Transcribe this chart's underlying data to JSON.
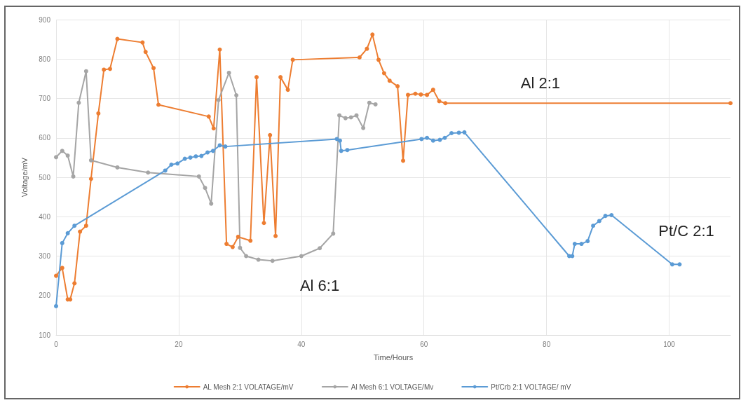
{
  "chart_data": {
    "type": "line",
    "xlabel": "Time/Hours",
    "ylabel": "Voltage/mV",
    "xlim": [
      0,
      110
    ],
    "xticks": [
      0,
      20,
      40,
      60,
      80,
      100
    ],
    "ylim": [
      100,
      900
    ],
    "yticks": [
      100,
      200,
      300,
      400,
      500,
      600,
      700,
      800,
      900
    ],
    "grid": true,
    "legend": "bottom",
    "marker": "circle",
    "line_style": "solid",
    "series": [
      {
        "name": "AL Mesh 2:1 VOLATAGE/mV",
        "color": "#ed7d31",
        "x": [
          0,
          1,
          1.9,
          2.3,
          3,
          3.9,
          4.9,
          5.7,
          6.9,
          7.8,
          8.8,
          10,
          14.1,
          14.6,
          15.9,
          16.7,
          24.9,
          25.7,
          26.7,
          27.8,
          28.8,
          29.7,
          31.7,
          32.7,
          33.9,
          34.9,
          35.8,
          36.6,
          37.8,
          38.6,
          49.5,
          50.7,
          51.6,
          52.6,
          53.5,
          54.4,
          55.7,
          56.6,
          57.4,
          58.6,
          59.5,
          60.5,
          61.5,
          62.5,
          63.5,
          110
        ],
        "values": [
          250,
          270,
          190,
          190,
          231,
          362,
          377,
          496,
          662,
          773,
          775,
          851,
          842,
          818,
          777,
          684,
          654,
          624,
          824,
          331,
          323,
          349,
          339,
          754,
          384,
          607,
          351,
          754,
          722,
          798,
          804,
          826,
          862,
          798,
          764,
          745,
          731,
          542,
          709,
          712,
          710,
          709,
          722,
          693,
          688,
          688
        ]
      },
      {
        "name": "Al Mesh 6:1 VOLTAGE/Mv",
        "color": "#a5a5a5",
        "x": [
          0,
          1,
          1.9,
          2.8,
          3.7,
          4.9,
          5.7,
          10,
          15,
          23.3,
          24.3,
          25.3,
          26.5,
          28.2,
          29.4,
          30,
          31,
          33,
          35.3,
          40,
          43,
          45.2,
          46.2,
          47.2,
          48.1,
          49,
          50.1,
          51.1,
          52.1
        ],
        "values": [
          551,
          567,
          555,
          502,
          689,
          769,
          543,
          525,
          512,
          502,
          473,
          433,
          696,
          765,
          708,
          321,
          300,
          291,
          288,
          300,
          320,
          357,
          657,
          650,
          652,
          657,
          625,
          689,
          685
        ]
      },
      {
        "name": "Pt/Crb 2:1 VOLTAGE/ mV",
        "color": "#5b9bd5",
        "x": [
          0,
          1,
          1.9,
          3,
          17.8,
          18.8,
          19.8,
          21,
          21.9,
          22.8,
          23.7,
          24.7,
          25.6,
          26.7,
          27.6,
          45.8,
          46.3,
          46.5,
          47.5,
          59.6,
          60.5,
          61.5,
          62.6,
          63.4,
          64.5,
          65.7,
          66.6,
          83.7,
          84.2,
          84.6,
          85.7,
          86.7,
          87.6,
          88.6,
          89.6,
          90.6,
          100.5,
          101.7
        ],
        "values": [
          173,
          333,
          358,
          377,
          517,
          532,
          535,
          547,
          550,
          553,
          554,
          563,
          567,
          581,
          578,
          597,
          593,
          567,
          569,
          597,
          600,
          593,
          595,
          600,
          612,
          613,
          614,
          300,
          300,
          331,
          331,
          338,
          377,
          389,
          402,
          404,
          279,
          279
        ]
      }
    ],
    "annotations": [
      "Al 2:1",
      "Pt/C 2:1",
      "Al 6:1"
    ]
  }
}
